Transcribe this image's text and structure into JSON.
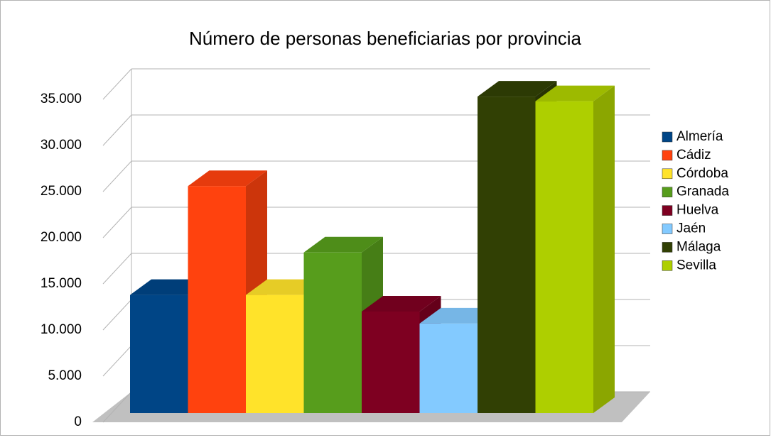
{
  "chart_data": {
    "type": "bar3d",
    "title": "Número de personas beneficiarias por provincia",
    "ylim": [
      0,
      35000
    ],
    "yticks": [
      {
        "value": 0,
        "label": "0"
      },
      {
        "value": 5000,
        "label": "5.000"
      },
      {
        "value": 10000,
        "label": "10.000"
      },
      {
        "value": 15000,
        "label": "15.000"
      },
      {
        "value": 20000,
        "label": "20.000"
      },
      {
        "value": 25000,
        "label": "25.000"
      },
      {
        "value": 30000,
        "label": "30.000"
      },
      {
        "value": 35000,
        "label": "35.000"
      }
    ],
    "grid": true,
    "legend": "right",
    "series": [
      {
        "name": "Almería",
        "color": "#004586",
        "values": [
          12800
        ]
      },
      {
        "name": "Cádiz",
        "color": "#ff420e",
        "values": [
          24600
        ]
      },
      {
        "name": "Córdoba",
        "color": "#ffe32a",
        "values": [
          12800
        ]
      },
      {
        "name": "Granada",
        "color": "#579d1c",
        "values": [
          17400
        ]
      },
      {
        "name": "Huelva",
        "color": "#7e0021",
        "values": [
          11000
        ]
      },
      {
        "name": "Jaén",
        "color": "#83caff",
        "values": [
          9700
        ]
      },
      {
        "name": "Málaga",
        "color": "#314004",
        "values": [
          34300
        ]
      },
      {
        "name": "Sevilla",
        "color": "#aecf00",
        "values": [
          33800
        ]
      }
    ]
  }
}
